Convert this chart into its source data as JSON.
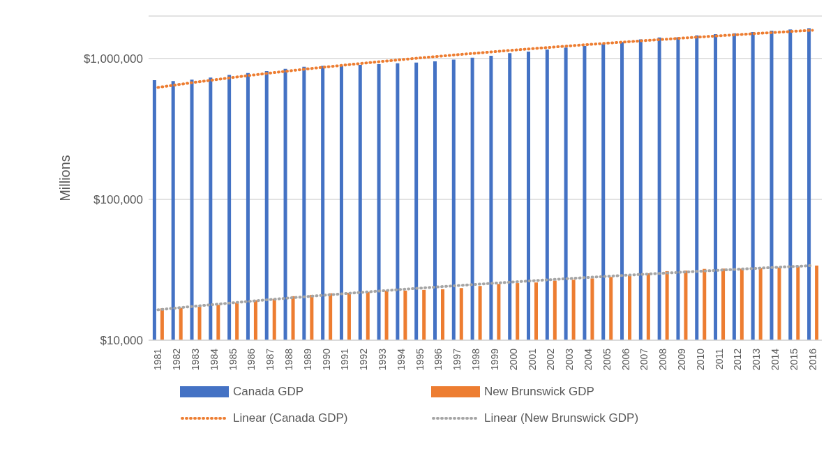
{
  "chart_data": {
    "type": "bar",
    "ylabel": "Millions",
    "log": "y",
    "grid": "y",
    "legend": "bottom",
    "categories": [
      "1981",
      "1982",
      "1983",
      "1984",
      "1985",
      "1986",
      "1987",
      "1988",
      "1989",
      "1990",
      "1991",
      "1992",
      "1993",
      "1994",
      "1995",
      "1996",
      "1997",
      "1998",
      "1999",
      "2000",
      "2001",
      "2002",
      "2003",
      "2004",
      "2005",
      "2006",
      "2007",
      "2008",
      "2009",
      "2010",
      "2011",
      "2012",
      "2013",
      "2014",
      "2015",
      "2016"
    ],
    "ylim": [
      10000,
      2000000
    ],
    "yticks": [
      {
        "value": 10000,
        "label": "$10,000"
      },
      {
        "value": 100000,
        "label": "$100,000"
      },
      {
        "value": 1000000,
        "label": "$1,000,000"
      }
    ],
    "series": [
      {
        "name": "Canada GDP",
        "color": "#4472c4",
        "values": [
          702000,
          692000,
          708000,
          731000,
          764000,
          787000,
          813000,
          844000,
          873000,
          885000,
          885000,
          902000,
          912000,
          925000,
          935000,
          953000,
          982000,
          1011000,
          1045000,
          1089000,
          1117000,
          1159000,
          1194000,
          1225000,
          1265000,
          1309000,
          1364000,
          1410000,
          1414000,
          1456000,
          1489000,
          1510000,
          1541000,
          1575000,
          1604000,
          1640000
        ]
      },
      {
        "name": "New Brunswick GDP",
        "color": "#ed7d31",
        "values": [
          16830,
          16950,
          17260,
          17830,
          18520,
          19220,
          19640,
          20530,
          20990,
          21530,
          21710,
          21940,
          22500,
          22500,
          22750,
          23010,
          23450,
          24260,
          25080,
          25430,
          25700,
          26490,
          26870,
          27470,
          28110,
          28840,
          29850,
          30920,
          31190,
          32070,
          32210,
          32210,
          32580,
          32810,
          33340,
          33880
        ]
      },
      {
        "name": "Linear (Canada GDP)",
        "type": "line",
        "color": "#ed7d31",
        "line_style": "dotted",
        "marker": "none",
        "values": [
          623000,
          650000,
          678000,
          705000,
          733000,
          760000,
          788000,
          815000,
          843000,
          870000,
          898000,
          925000,
          953000,
          980000,
          1008000,
          1035000,
          1063000,
          1090000,
          1118000,
          1145000,
          1173000,
          1200000,
          1228000,
          1255000,
          1283000,
          1310000,
          1338000,
          1365000,
          1393000,
          1420000,
          1448000,
          1475000,
          1503000,
          1530000,
          1558000,
          1585000
        ]
      },
      {
        "name": "Linear (New Brunswick GDP)",
        "type": "line",
        "color": "#a5a5a5",
        "line_style": "dotted",
        "marker": "none",
        "values": [
          16440,
          16940,
          17440,
          17930,
          18430,
          18930,
          19430,
          19930,
          20430,
          20920,
          21420,
          21920,
          22420,
          22920,
          23420,
          23910,
          24410,
          24910,
          25410,
          25910,
          26410,
          26900,
          27400,
          27900,
          28400,
          28900,
          29400,
          29890,
          30390,
          30890,
          31390,
          31890,
          32390,
          32890,
          33380,
          33880
        ]
      }
    ]
  }
}
